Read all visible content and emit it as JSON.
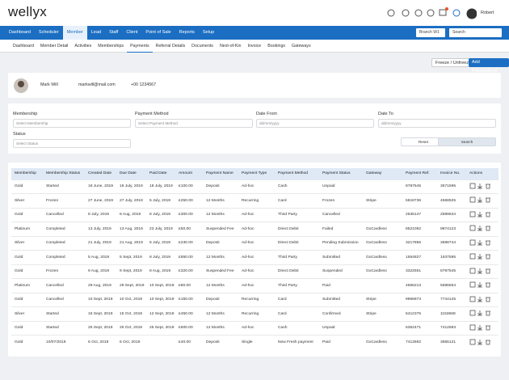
{
  "header": {
    "logo": "wellyx",
    "user": "Robert"
  },
  "nav": {
    "items": [
      "Dashboard",
      "Scheduler",
      "Member",
      "Lead",
      "Staff",
      "Client",
      "Point of Sale",
      "Reports",
      "Setup"
    ],
    "branch": "Branch W1",
    "search": "Search"
  },
  "subnav": [
    "Dashboard",
    "Member Detail",
    "Activities",
    "Memberships",
    "Payments",
    "Referral Details",
    "Documents",
    "Next-of-Kin",
    "Invoice",
    "Bookings",
    "Gateways"
  ],
  "buttons": {
    "freeze": "Freeze / Unfreeze",
    "add": "Add Transactions"
  },
  "profile": {
    "name": "Mark Will",
    "email": "markwill@mail.com",
    "phone": "+00 1234567"
  },
  "filters": {
    "fields": [
      {
        "label": "Membership",
        "placeholder": "Select Membership"
      },
      {
        "label": "Payment Method",
        "placeholder": "Select Payment Method"
      },
      {
        "label": "Date From",
        "placeholder": "dd/mm/yyyy"
      },
      {
        "label": "Date To",
        "placeholder": "dd/mm/yyyy"
      },
      {
        "label": "Status",
        "placeholder": "Select Status"
      }
    ],
    "reset": "Reset",
    "search": "Search"
  },
  "table": {
    "headers": [
      "Membership",
      "Membership Status",
      "Created Date",
      "Due Date",
      "Paid Date",
      "Amount",
      "Payment Name",
      "Payment Type",
      "Payment Method",
      "Payment Status",
      "Gateway",
      "Payment Ref.",
      "Invoice No.",
      "Actions"
    ],
    "rows": [
      [
        "Gold",
        "Started",
        "18 June, 2019",
        "18 July, 2019",
        "18 July, 2019",
        "£100.00",
        "Deposit",
        "Ad-hoc",
        "Cash",
        "Unpaid",
        null,
        "8787545",
        "3571595"
      ],
      [
        "Silver",
        "Frozen",
        "27 June, 2019",
        "27 July, 2019",
        "5 July, 2019",
        "£250.00",
        "12 Months",
        "Recurring",
        "Card",
        "Frozen",
        "Stripe",
        "5818736",
        "4568525"
      ],
      [
        "Gold",
        "Cancelled",
        "8 July, 2019",
        "8 Aug, 2019",
        "8 July, 2019",
        "£300.00",
        "12 Months",
        "Ad-hoc",
        "Third Party",
        "Cancelled",
        null,
        "2536147",
        "2589634"
      ],
      [
        "Platinum",
        "Completed",
        "13 July, 2019",
        "13 Aug, 2019",
        "23 July, 2019",
        "£50.00",
        "Suspended Fee",
        "Ad-hoc",
        "Direct Debit",
        "Failed",
        "GoCardless",
        "8521092",
        "9874123"
      ],
      [
        "Silver",
        "Completed",
        "21 July, 2019",
        "21 Aug, 2019",
        "5 July, 2019",
        "£230.00",
        "Deposit",
        "Ad-hoc",
        "Direct Debit",
        "Pending Submission",
        "GoCardless",
        "3217856",
        "3698744"
      ],
      [
        "Gold",
        "Completed",
        "5 Aug, 2019",
        "5 Sept, 2019",
        "8 July, 2019",
        "£650.00",
        "12 Months",
        "Ad-hoc",
        "Third Party",
        "Submitted",
        "GoCardless",
        "1554827",
        "1537595"
      ],
      [
        "Gold",
        "Frozen",
        "9 Aug, 2019",
        "9 Sept, 2019",
        "8 Aug, 2019",
        "£320.00",
        "Suspended Fee",
        "Ad-hoc",
        "Direct Debit",
        "Suspended",
        "GoCardless",
        "3322551",
        "8787545"
      ],
      [
        "Platinum",
        "Cancelled",
        "29 Aug, 2019",
        "29 Sept, 2019",
        "10 Sept, 2019",
        "£80.00",
        "12 Months",
        "Ad-hoc",
        "Third Party",
        "Paid",
        null,
        "4566213",
        "5586664"
      ],
      [
        "Gold",
        "Cancelled",
        "10 Sept, 2019",
        "10 Oct, 2019",
        "10 Sept, 2019",
        "£150.00",
        "Deposit",
        "Recurring",
        "Card",
        "Submitted",
        "Stripe",
        "9966873",
        "7744125"
      ],
      [
        "Silver",
        "Started",
        "15 Sept, 2019",
        "15 Oct, 2019",
        "12 Sept, 2019",
        "£450.00",
        "12 Months",
        "Recurring",
        "Card",
        "Confirmed",
        "Stripe",
        "5412375",
        "1153668"
      ],
      [
        "Gold",
        "Started",
        "25 Sept, 2019",
        "25 Oct, 2019",
        "25 Sept, 2019",
        "£600.00",
        "12 Months",
        "Ad-hoc",
        "Cash",
        "Unpaid",
        null,
        "6352471",
        "7412583"
      ],
      [
        "Gold",
        "10/07/2019",
        "6 Oct, 2019",
        "6 Oct, 2019",
        null,
        "£40.00",
        "Deposit",
        "Single",
        "New Fresh payment",
        "Paid",
        "GoCardless",
        "7413692",
        "3655121"
      ]
    ]
  }
}
